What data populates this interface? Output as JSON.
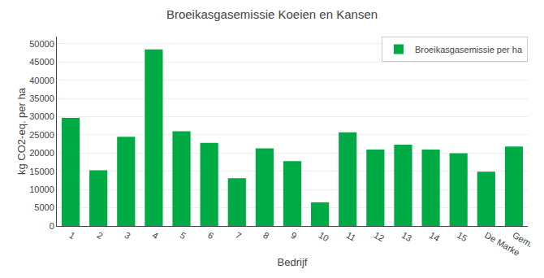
{
  "chart_data": {
    "type": "bar",
    "title": "Broeikasgasemissie Koeien en Kansen",
    "xlabel": "Bedrijf",
    "ylabel": "kg CO2-eq. per ha",
    "categories": [
      "1",
      "2",
      "3",
      "4",
      "5",
      "6",
      "7",
      "8",
      "9",
      "10",
      "11",
      "12",
      "13",
      "14",
      "15",
      "De Marke",
      "Gem."
    ],
    "series": [
      {
        "name": "Broeikasgasemissie per ha",
        "color": "#00AA44",
        "values": [
          29700,
          15300,
          24500,
          48500,
          26000,
          22800,
          13100,
          21300,
          17800,
          6500,
          25700,
          21000,
          22300,
          21000,
          20000,
          14900,
          21800
        ]
      }
    ],
    "ylim": [
      0,
      52000
    ],
    "yticks": [
      0,
      5000,
      10000,
      15000,
      20000,
      25000,
      30000,
      35000,
      40000,
      45000,
      50000
    ],
    "grid": true,
    "legend": "upper right"
  }
}
